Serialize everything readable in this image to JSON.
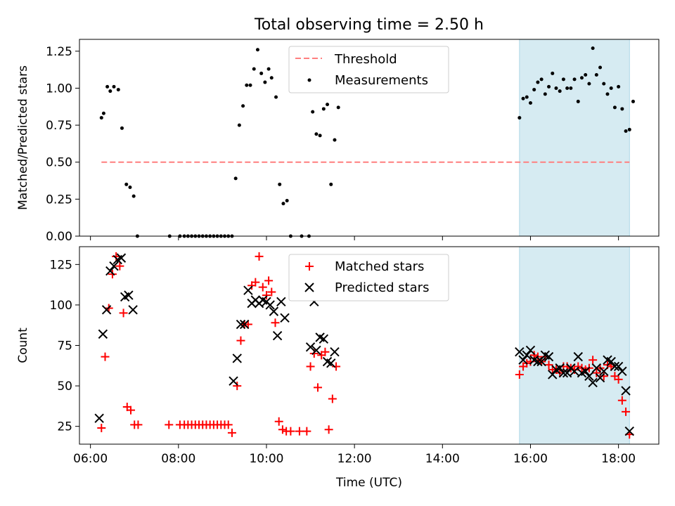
{
  "chart_data": {
    "title": "Total observing time = 2.50 h",
    "xlabel": "Time (UTC)",
    "x_ticks": [
      "06:00",
      "08:00",
      "10:00",
      "12:00",
      "14:00",
      "16:00",
      "18:00"
    ],
    "xlim": [
      "05:45",
      "18:55"
    ],
    "shaded_interval": {
      "start": "15:45",
      "end": "18:15",
      "color": "#add8e6"
    },
    "panels": [
      {
        "type": "scatter",
        "ylabel": "Matched/Predicted stars",
        "ylim": [
          0,
          1.33
        ],
        "y_ticks": [
          "0.00",
          "0.25",
          "0.50",
          "0.75",
          "1.00",
          "1.25"
        ],
        "legend_position": "top-center",
        "threshold": {
          "name": "Threshold",
          "value": 0.5,
          "color": "#ff7f7f",
          "from": "06:15",
          "to": "18:15"
        },
        "series": [
          {
            "name": "Measurements",
            "marker": "dot",
            "color": "#000000",
            "points": [
              [
                "06:15",
                0.8
              ],
              [
                "06:18",
                0.83
              ],
              [
                "06:23",
                1.01
              ],
              [
                "06:27",
                0.98
              ],
              [
                "06:32",
                1.01
              ],
              [
                "06:38",
                0.99
              ],
              [
                "06:43",
                0.73
              ],
              [
                "06:49",
                0.35
              ],
              [
                "06:54",
                0.33
              ],
              [
                "06:59",
                0.27
              ],
              [
                "07:04",
                0.0
              ],
              [
                "07:48",
                0.0
              ],
              [
                "08:02",
                0.0
              ],
              [
                "08:08",
                0.0
              ],
              [
                "08:13",
                0.0
              ],
              [
                "08:18",
                0.0
              ],
              [
                "08:23",
                0.0
              ],
              [
                "08:28",
                0.0
              ],
              [
                "08:33",
                0.0
              ],
              [
                "08:38",
                0.0
              ],
              [
                "08:43",
                0.0
              ],
              [
                "08:48",
                0.0
              ],
              [
                "08:53",
                0.0
              ],
              [
                "08:58",
                0.0
              ],
              [
                "09:03",
                0.0
              ],
              [
                "09:08",
                0.0
              ],
              [
                "09:13",
                0.0
              ],
              [
                "09:18",
                0.39
              ],
              [
                "09:23",
                0.75
              ],
              [
                "09:28",
                0.88
              ],
              [
                "09:33",
                1.02
              ],
              [
                "09:38",
                1.02
              ],
              [
                "09:43",
                1.13
              ],
              [
                "09:48",
                1.26
              ],
              [
                "09:53",
                1.1
              ],
              [
                "09:58",
                1.04
              ],
              [
                "10:03",
                1.13
              ],
              [
                "10:07",
                1.07
              ],
              [
                "10:13",
                0.94
              ],
              [
                "10:18",
                0.35
              ],
              [
                "10:23",
                0.22
              ],
              [
                "10:28",
                0.24
              ],
              [
                "10:33",
                0.0
              ],
              [
                "10:48",
                0.0
              ],
              [
                "10:58",
                0.0
              ],
              [
                "10:59",
                1.05
              ],
              [
                "11:03",
                0.84
              ],
              [
                "11:08",
                0.69
              ],
              [
                "11:13",
                0.68
              ],
              [
                "11:18",
                0.86
              ],
              [
                "11:23",
                0.89
              ],
              [
                "11:28",
                0.35
              ],
              [
                "11:33",
                0.65
              ],
              [
                "11:38",
                0.87
              ],
              [
                "15:45",
                0.8
              ],
              [
                "15:50",
                0.93
              ],
              [
                "15:55",
                0.94
              ],
              [
                "16:00",
                0.9
              ],
              [
                "16:05",
                0.99
              ],
              [
                "16:10",
                1.04
              ],
              [
                "16:15",
                1.06
              ],
              [
                "16:20",
                0.96
              ],
              [
                "16:25",
                1.01
              ],
              [
                "16:30",
                1.1
              ],
              [
                "16:35",
                1.0
              ],
              [
                "16:40",
                0.98
              ],
              [
                "16:45",
                1.06
              ],
              [
                "16:50",
                1.0
              ],
              [
                "16:55",
                1.0
              ],
              [
                "17:00",
                1.06
              ],
              [
                "17:05",
                0.91
              ],
              [
                "17:10",
                1.07
              ],
              [
                "17:15",
                1.09
              ],
              [
                "17:20",
                1.03
              ],
              [
                "17:25",
                1.27
              ],
              [
                "17:30",
                1.09
              ],
              [
                "17:35",
                1.14
              ],
              [
                "17:40",
                1.03
              ],
              [
                "17:45",
                0.96
              ],
              [
                "17:50",
                1.0
              ],
              [
                "17:55",
                0.87
              ],
              [
                "18:00",
                1.01
              ],
              [
                "18:05",
                0.86
              ],
              [
                "18:10",
                0.71
              ],
              [
                "18:15",
                0.72
              ],
              [
                "18:20",
                0.91
              ]
            ]
          }
        ]
      },
      {
        "type": "scatter",
        "ylabel": "Count",
        "ylim": [
          14,
          136
        ],
        "y_ticks": [
          "25",
          "50",
          "75",
          "100",
          "125"
        ],
        "legend_position": "top-center",
        "series": [
          {
            "name": "Matched stars",
            "marker": "plus",
            "color": "#ff0000",
            "points": [
              [
                "06:15",
                24
              ],
              [
                "06:20",
                68
              ],
              [
                "06:25",
                98
              ],
              [
                "06:30",
                119
              ],
              [
                "06:35",
                130
              ],
              [
                "06:40",
                124
              ],
              [
                "06:45",
                95
              ],
              [
                "06:50",
                37
              ],
              [
                "06:55",
                35
              ],
              [
                "07:00",
                26
              ],
              [
                "07:05",
                26
              ],
              [
                "07:47",
                26
              ],
              [
                "08:02",
                26
              ],
              [
                "08:08",
                26
              ],
              [
                "08:13",
                26
              ],
              [
                "08:18",
                26
              ],
              [
                "08:23",
                26
              ],
              [
                "08:28",
                26
              ],
              [
                "08:33",
                26
              ],
              [
                "08:38",
                26
              ],
              [
                "08:43",
                26
              ],
              [
                "08:48",
                26
              ],
              [
                "08:53",
                26
              ],
              [
                "08:58",
                26
              ],
              [
                "09:03",
                26
              ],
              [
                "09:08",
                26
              ],
              [
                "09:13",
                21
              ],
              [
                "09:20",
                50
              ],
              [
                "09:25",
                78
              ],
              [
                "09:30",
                88
              ],
              [
                "09:35",
                88
              ],
              [
                "09:40",
                112
              ],
              [
                "09:45",
                114
              ],
              [
                "09:50",
                130
              ],
              [
                "09:55",
                111
              ],
              [
                "10:00",
                106
              ],
              [
                "10:03",
                115
              ],
              [
                "10:07",
                108
              ],
              [
                "10:12",
                89
              ],
              [
                "10:17",
                28
              ],
              [
                "10:22",
                23
              ],
              [
                "10:27",
                22
              ],
              [
                "10:33",
                22
              ],
              [
                "10:45",
                22
              ],
              [
                "10:55",
                22
              ],
              [
                "11:00",
                62
              ],
              [
                "11:05",
                70
              ],
              [
                "11:10",
                49
              ],
              [
                "11:15",
                69
              ],
              [
                "11:20",
                71
              ],
              [
                "11:25",
                23
              ],
              [
                "11:30",
                42
              ],
              [
                "11:35",
                62
              ],
              [
                "15:45",
                57
              ],
              [
                "15:50",
                62
              ],
              [
                "15:55",
                64
              ],
              [
                "16:00",
                65
              ],
              [
                "16:05",
                69
              ],
              [
                "16:10",
                68
              ],
              [
                "16:15",
                65
              ],
              [
                "16:20",
                68
              ],
              [
                "16:25",
                63
              ],
              [
                "16:30",
                60
              ],
              [
                "16:35",
                60
              ],
              [
                "16:40",
                58
              ],
              [
                "16:45",
                62
              ],
              [
                "16:50",
                62
              ],
              [
                "16:55",
                61
              ],
              [
                "17:00",
                60
              ],
              [
                "17:05",
                62
              ],
              [
                "17:10",
                61
              ],
              [
                "17:15",
                60
              ],
              [
                "17:20",
                61
              ],
              [
                "17:25",
                66
              ],
              [
                "17:30",
                58
              ],
              [
                "17:35",
                61
              ],
              [
                "17:40",
                56
              ],
              [
                "17:45",
                63
              ],
              [
                "17:50",
                62
              ],
              [
                "17:55",
                56
              ],
              [
                "18:00",
                54
              ],
              [
                "18:05",
                41
              ],
              [
                "18:10",
                34
              ],
              [
                "18:15",
                20
              ]
            ]
          },
          {
            "name": "Predicted stars",
            "marker": "x",
            "color": "#000000",
            "points": [
              [
                "06:12",
                30
              ],
              [
                "06:17",
                82
              ],
              [
                "06:22",
                97
              ],
              [
                "06:27",
                121
              ],
              [
                "06:32",
                124
              ],
              [
                "06:37",
                128
              ],
              [
                "06:42",
                129
              ],
              [
                "06:47",
                105
              ],
              [
                "06:52",
                106
              ],
              [
                "06:58",
                97
              ],
              [
                "09:15",
                53
              ],
              [
                "09:20",
                67
              ],
              [
                "09:25",
                88
              ],
              [
                "09:30",
                88
              ],
              [
                "09:35",
                109
              ],
              [
                "09:40",
                101
              ],
              [
                "09:45",
                103
              ],
              [
                "09:50",
                101
              ],
              [
                "09:55",
                103
              ],
              [
                "10:00",
                102
              ],
              [
                "10:05",
                100
              ],
              [
                "10:10",
                96
              ],
              [
                "10:15",
                81
              ],
              [
                "10:20",
                102
              ],
              [
                "10:25",
                92
              ],
              [
                "11:00",
                74
              ],
              [
                "11:05",
                102
              ],
              [
                "11:08",
                72
              ],
              [
                "11:13",
                80
              ],
              [
                "11:18",
                79
              ],
              [
                "11:23",
                65
              ],
              [
                "11:28",
                64
              ],
              [
                "11:33",
                71
              ],
              [
                "15:45",
                71
              ],
              [
                "15:50",
                66
              ],
              [
                "15:55",
                69
              ],
              [
                "16:00",
                72
              ],
              [
                "16:05",
                66
              ],
              [
                "16:10",
                65
              ],
              [
                "16:15",
                65
              ],
              [
                "16:20",
                69
              ],
              [
                "16:25",
                68
              ],
              [
                "16:30",
                57
              ],
              [
                "16:35",
                60
              ],
              [
                "16:40",
                61
              ],
              [
                "16:45",
                58
              ],
              [
                "16:50",
                58
              ],
              [
                "16:55",
                61
              ],
              [
                "17:00",
                59
              ],
              [
                "17:05",
                68
              ],
              [
                "17:10",
                58
              ],
              [
                "17:15",
                59
              ],
              [
                "17:20",
                56
              ],
              [
                "17:25",
                52
              ],
              [
                "17:30",
                61
              ],
              [
                "17:35",
                55
              ],
              [
                "17:40",
                59
              ],
              [
                "17:45",
                66
              ],
              [
                "17:50",
                65
              ],
              [
                "17:55",
                62
              ],
              [
                "18:00",
                62
              ],
              [
                "18:05",
                59
              ],
              [
                "18:10",
                47
              ],
              [
                "18:15",
                22
              ]
            ]
          }
        ]
      }
    ]
  }
}
